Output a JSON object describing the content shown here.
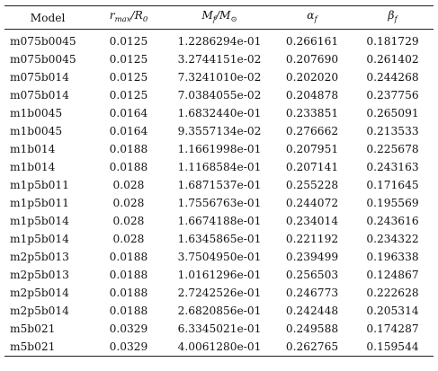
{
  "table": {
    "headers": {
      "model": "Model",
      "r_num": "r",
      "r_sub": "max",
      "r_den": "/R",
      "r_den_sub": "0",
      "mf_num": "M",
      "mf_sub": "f",
      "mf_den": "/M",
      "mf_den_sub": "⊙",
      "alpha": "α",
      "alpha_sub": "f",
      "beta": "β",
      "beta_sub": "f"
    },
    "rows": [
      [
        "m075b0045",
        "0.0125",
        "1.2286294e-01",
        "0.266161",
        "0.181729"
      ],
      [
        "m075b0045",
        "0.0125",
        "3.2744151e-02",
        "0.207690",
        "0.261402"
      ],
      [
        "m075b014",
        "0.0125",
        "7.3241010e-02",
        "0.202020",
        "0.244268"
      ],
      [
        "m075b014",
        "0.0125",
        "7.0384055e-02",
        "0.204878",
        "0.237756"
      ],
      [
        "m1b0045",
        "0.0164",
        "1.6832440e-01",
        "0.233851",
        "0.265091"
      ],
      [
        "m1b0045",
        "0.0164",
        "9.3557134e-02",
        "0.276662",
        "0.213533"
      ],
      [
        "m1b014",
        "0.0188",
        "1.1661998e-01",
        "0.207951",
        "0.225678"
      ],
      [
        "m1b014",
        "0.0188",
        "1.1168584e-01",
        "0.207141",
        "0.243163"
      ],
      [
        "m1p5b011",
        "0.028",
        "1.6871537e-01",
        "0.255228",
        "0.171645"
      ],
      [
        "m1p5b011",
        "0.028",
        "1.7556763e-01",
        "0.244072",
        "0.195569"
      ],
      [
        "m1p5b014",
        "0.028",
        "1.6674188e-01",
        "0.234014",
        "0.243616"
      ],
      [
        "m1p5b014",
        "0.028",
        "1.6345865e-01",
        "0.221192",
        "0.234322"
      ],
      [
        "m2p5b013",
        "0.0188",
        "3.7504950e-01",
        "0.239499",
        "0.196338"
      ],
      [
        "m2p5b013",
        "0.0188",
        "1.0161296e-01",
        "0.256503",
        "0.124867"
      ],
      [
        "m2p5b014",
        "0.0188",
        "2.7242526e-01",
        "0.246773",
        "0.222628"
      ],
      [
        "m2p5b014",
        "0.0188",
        "2.6820856e-01",
        "0.242448",
        "0.205314"
      ],
      [
        "m5b021",
        "0.0329",
        "6.3345021e-01",
        "0.249588",
        "0.174287"
      ],
      [
        "m5b021",
        "0.0329",
        "4.0061280e-01",
        "0.262765",
        "0.159544"
      ]
    ]
  }
}
